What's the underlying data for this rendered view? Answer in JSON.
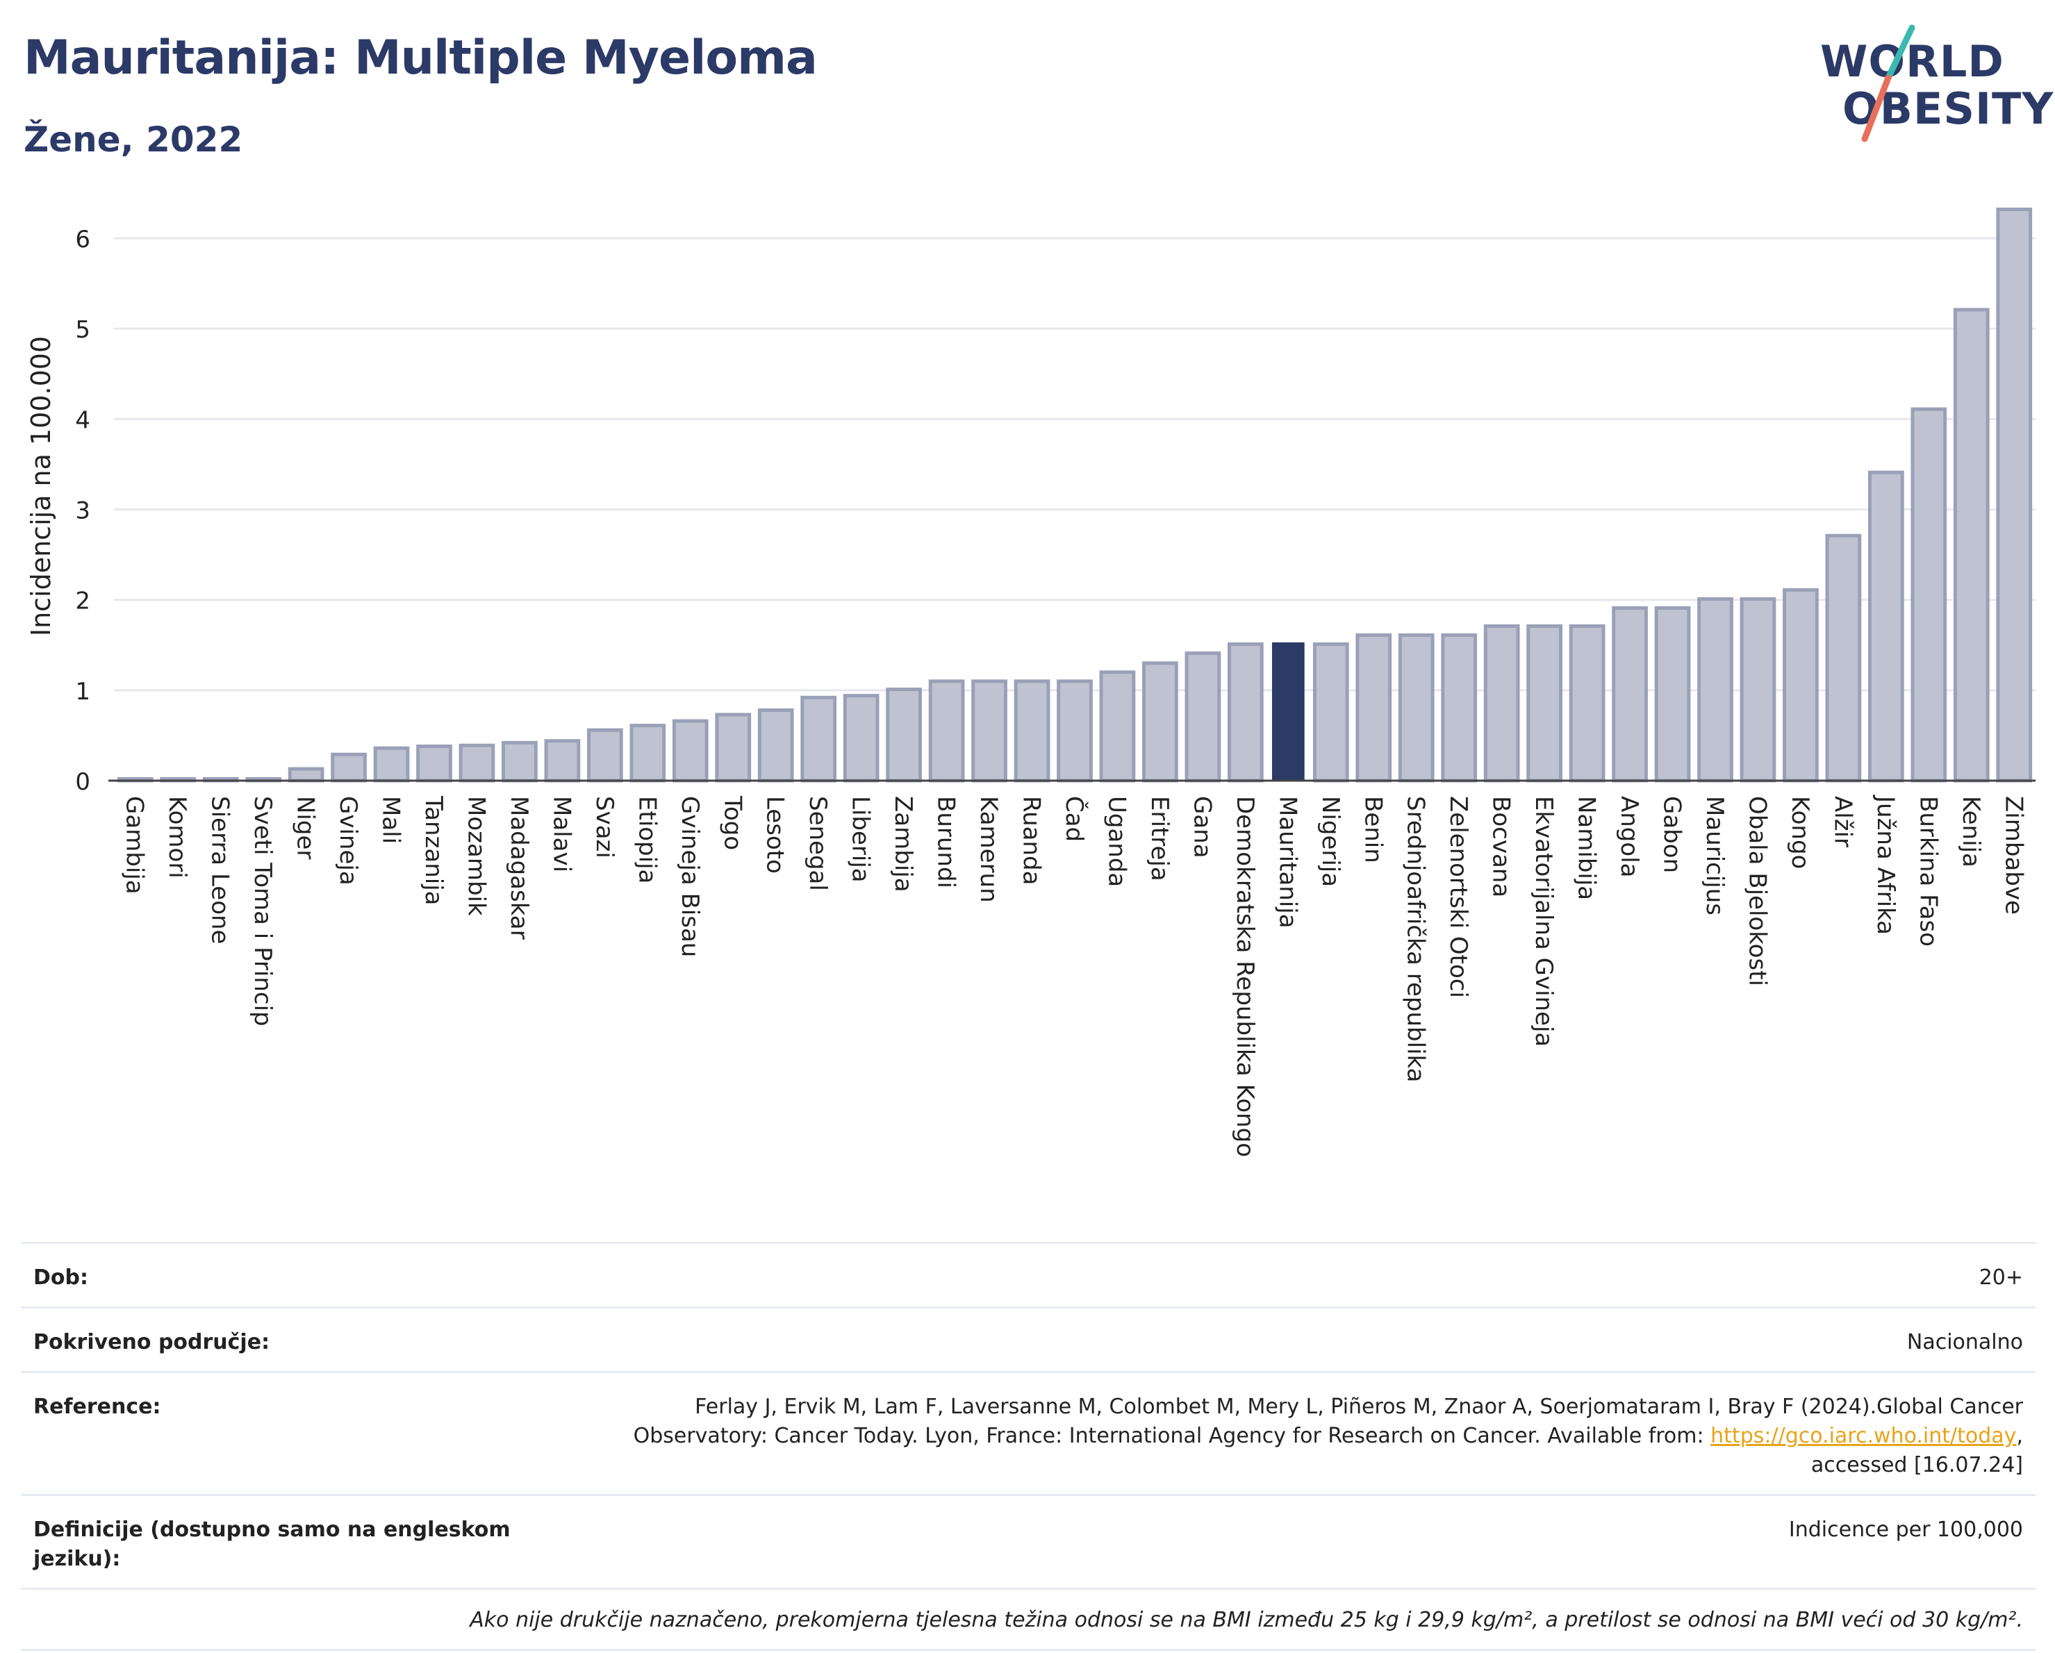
{
  "header": {
    "title": "Mauritanija: Multiple Myeloma",
    "subtitle": "Žene, 2022"
  },
  "logo": {
    "line1": "WORLD",
    "line2": "OBESITY",
    "colors": {
      "navy": "#2b3a67",
      "teal": "#3bb8b0",
      "coral": "#e8705a"
    }
  },
  "chart_data": {
    "type": "bar",
    "title": "",
    "xlabel": "",
    "ylabel": "Incidencija na 100.000",
    "ylim": [
      0,
      6.5
    ],
    "yticks": [
      0,
      1,
      2,
      3,
      4,
      5,
      6
    ],
    "grid": true,
    "highlight": "Mauritanija",
    "colors": {
      "bar": "#bfc3d1",
      "bar_border": "#9aa0b8",
      "highlight": "#2b3a67",
      "grid": "#e6e8ee"
    },
    "categories": [
      "Gambija",
      "Komori",
      "Sierra Leone",
      "Sveti Toma i Princip",
      "Niger",
      "Gvineja",
      "Mali",
      "Tanzanija",
      "Mozambik",
      "Madagaskar",
      "Malavi",
      "Svazi",
      "Etiopija",
      "Gvineja Bisau",
      "Togo",
      "Lesoto",
      "Senegal",
      "Liberija",
      "Zambija",
      "Burundi",
      "Kamerun",
      "Ruanda",
      "Čad",
      "Uganda",
      "Eritreja",
      "Gana",
      "Demokratska Republika Kongo",
      "Mauritanija",
      "Nigerija",
      "Benin",
      "Srednjoafrička republika",
      "Zelenortski Otoci",
      "Bocvana",
      "Ekvatorijalna Gvineja",
      "Namibija",
      "Angola",
      "Gabon",
      "Mauricijus",
      "Obala Bjelokosti",
      "Kongo",
      "Alžir",
      "Južna Afrika",
      "Burkina Faso",
      "Kenija",
      "Zimbabve"
    ],
    "values": [
      0.02,
      0.02,
      0.02,
      0.02,
      0.13,
      0.29,
      0.36,
      0.38,
      0.39,
      0.42,
      0.44,
      0.56,
      0.61,
      0.66,
      0.73,
      0.78,
      0.92,
      0.94,
      1.01,
      1.1,
      1.1,
      1.1,
      1.1,
      1.2,
      1.3,
      1.41,
      1.51,
      1.53,
      1.51,
      1.61,
      1.61,
      1.61,
      1.71,
      1.71,
      1.71,
      1.91,
      1.91,
      2.01,
      2.01,
      2.11,
      2.71,
      3.41,
      4.11,
      5.21,
      6.32
    ]
  },
  "info": {
    "age_label": "Dob:",
    "age_value": "20+",
    "coverage_label": "Pokriveno područje:",
    "coverage_value": "Nacionalno",
    "reference_label": "Reference:",
    "reference_text_1": "Ferlay J, Ervik M, Lam F, Laversanne M, Colombet M, Mery L, Piñeros M, Znaor A, Soerjomataram I, Bray F (2024).Global Cancer Observatory: Cancer Today. Lyon, France: International Agency for Research on Cancer. Available from: ",
    "reference_link": "https://gco.iarc.who.int/today",
    "reference_text_2": ", accessed [16.07.24]",
    "definitions_label": "Definicije (dostupno samo na engleskom jeziku):",
    "definitions_value": "Indicence per 100,000",
    "note": "Ako nije drukčije naznačeno, prekomjerna tjelesna težina odnosi se na BMI između 25 kg i 29,9 kg/m², a pretilost se odnosi na BMI veći od 30 kg/m²."
  }
}
